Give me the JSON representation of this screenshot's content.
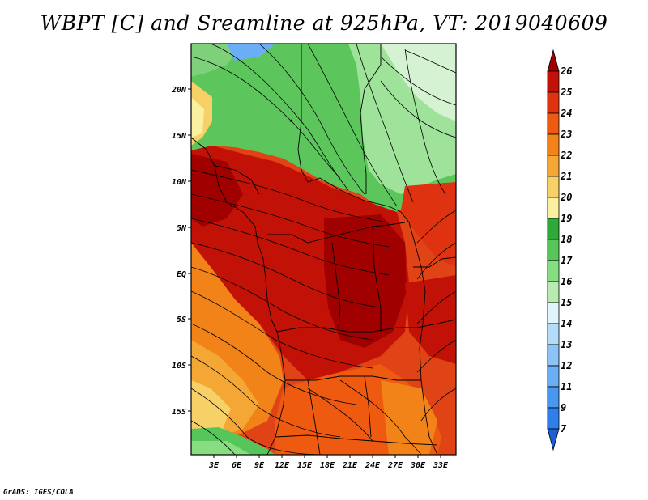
{
  "title": "WBPT [C] and Sreamline at 925hPa, VT: 2019040609",
  "credit": "GrADS: IGES/COLA",
  "map": {
    "lon_ticks": [
      "3E",
      "6E",
      "9E",
      "12E",
      "15E",
      "18E",
      "21E",
      "24E",
      "27E",
      "30E",
      "33E"
    ],
    "lat_ticks": [
      "20N",
      "15N",
      "10N",
      "5N",
      "EQ",
      "5S",
      "10S",
      "15S"
    ]
  },
  "colorbar": {
    "levels": [
      "7",
      "9",
      "11",
      "12",
      "13",
      "14",
      "15",
      "16",
      "17",
      "18",
      "19",
      "20",
      "21",
      "22",
      "23",
      "24",
      "25",
      "26"
    ],
    "colors": [
      "#1e5fd6",
      "#2f7fe8",
      "#4a97f0",
      "#6aaef5",
      "#8cc4f7",
      "#b4dcf8",
      "#e2f4fb",
      "#b9eab2",
      "#86dd82",
      "#56c65a",
      "#2fa93a",
      "#fbf0a0",
      "#f8d068",
      "#f5a735",
      "#f28318",
      "#ee5a10",
      "#de3210",
      "#c21208",
      "#a00000"
    ]
  }
}
